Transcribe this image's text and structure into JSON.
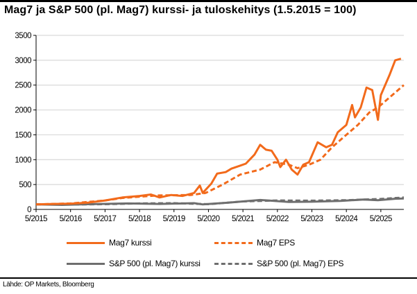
{
  "chart_data": {
    "type": "line",
    "title": "Mag7 ja S&P 500 (pl. Mag7) kurssi- ja tuloskehitys (1.5.2015 = 100)",
    "xlabel": "",
    "ylabel": "",
    "ylim": [
      0,
      3500
    ],
    "xlim": [
      "2015-05",
      "2026-01"
    ],
    "yticks": [
      "0",
      "500",
      "1000",
      "1500",
      "2000",
      "2500",
      "3000",
      "3500"
    ],
    "xticks": [
      "5/2015",
      "5/2016",
      "5/2017",
      "5/2018",
      "5/2019",
      "5/2020",
      "5/2021",
      "5/2022",
      "5/2023",
      "5/2024",
      "5/2025"
    ],
    "grid": "horizontal",
    "legend_placement": "bottom",
    "series": [
      {
        "name": "Mag7 kurssi",
        "color": "#F26A1B",
        "dash": "solid",
        "points": [
          [
            "2015-05",
            100
          ],
          [
            "2015-11",
            110
          ],
          [
            "2016-05",
            115
          ],
          [
            "2016-11",
            135
          ],
          [
            "2017-05",
            180
          ],
          [
            "2017-11",
            240
          ],
          [
            "2018-05",
            270
          ],
          [
            "2018-09",
            300
          ],
          [
            "2018-12",
            240
          ],
          [
            "2019-04",
            290
          ],
          [
            "2019-08",
            270
          ],
          [
            "2019-12",
            330
          ],
          [
            "2020-02",
            480
          ],
          [
            "2020-03",
            330
          ],
          [
            "2020-06",
            520
          ],
          [
            "2020-08",
            720
          ],
          [
            "2020-11",
            750
          ],
          [
            "2021-01",
            820
          ],
          [
            "2021-04",
            880
          ],
          [
            "2021-06",
            920
          ],
          [
            "2021-09",
            1100
          ],
          [
            "2021-11",
            1300
          ],
          [
            "2022-01",
            1200
          ],
          [
            "2022-03",
            1180
          ],
          [
            "2022-05",
            1000
          ],
          [
            "2022-06",
            850
          ],
          [
            "2022-08",
            1000
          ],
          [
            "2022-10",
            800
          ],
          [
            "2022-12",
            700
          ],
          [
            "2023-02",
            900
          ],
          [
            "2023-04",
            950
          ],
          [
            "2023-07",
            1350
          ],
          [
            "2023-10",
            1250
          ],
          [
            "2023-12",
            1300
          ],
          [
            "2024-02",
            1550
          ],
          [
            "2024-05",
            1700
          ],
          [
            "2024-07",
            2100
          ],
          [
            "2024-08",
            1850
          ],
          [
            "2024-10",
            2050
          ],
          [
            "2024-12",
            2450
          ],
          [
            "2025-02",
            2400
          ],
          [
            "2025-04",
            1800
          ],
          [
            "2025-05",
            2300
          ],
          [
            "2025-08",
            2700
          ],
          [
            "2025-10",
            3000
          ],
          [
            "2025-12",
            3030
          ]
        ]
      },
      {
        "name": "Mag7 EPS",
        "color": "#F26A1B",
        "dash": "dashed",
        "points": [
          [
            "2015-05",
            100
          ],
          [
            "2016-05",
            120
          ],
          [
            "2017-05",
            180
          ],
          [
            "2017-11",
            230
          ],
          [
            "2018-11",
            280
          ],
          [
            "2019-11",
            290
          ],
          [
            "2020-04",
            330
          ],
          [
            "2020-10",
            500
          ],
          [
            "2021-04",
            700
          ],
          [
            "2021-11",
            800
          ],
          [
            "2022-04",
            950
          ],
          [
            "2022-09",
            900
          ],
          [
            "2022-12",
            830
          ],
          [
            "2023-04",
            900
          ],
          [
            "2023-08",
            1000
          ],
          [
            "2023-12",
            1250
          ],
          [
            "2024-04",
            1450
          ],
          [
            "2024-09",
            1700
          ],
          [
            "2025-01",
            1950
          ],
          [
            "2025-04",
            2050
          ],
          [
            "2025-09",
            2300
          ],
          [
            "2026-01",
            2500
          ]
        ]
      },
      {
        "name": "S&P 500 (pl. Mag7) kurssi",
        "color": "#6E6E6E",
        "dash": "solid",
        "points": [
          [
            "2015-05",
            100
          ],
          [
            "2016-02",
            90
          ],
          [
            "2016-11",
            105
          ],
          [
            "2018-01",
            120
          ],
          [
            "2018-12",
            110
          ],
          [
            "2019-12",
            125
          ],
          [
            "2020-03",
            100
          ],
          [
            "2020-12",
            135
          ],
          [
            "2021-11",
            190
          ],
          [
            "2022-09",
            150
          ],
          [
            "2023-05",
            155
          ],
          [
            "2024-03",
            170
          ],
          [
            "2024-11",
            200
          ],
          [
            "2025-04",
            185
          ],
          [
            "2025-10",
            215
          ],
          [
            "2026-01",
            220
          ]
        ]
      },
      {
        "name": "S&P 500 (pl. Mag7) EPS",
        "color": "#6E6E6E",
        "dash": "dashed",
        "points": [
          [
            "2015-05",
            100
          ],
          [
            "2016-05",
            98
          ],
          [
            "2017-05",
            105
          ],
          [
            "2018-05",
            120
          ],
          [
            "2019-05",
            125
          ],
          [
            "2020-05",
            105
          ],
          [
            "2021-05",
            160
          ],
          [
            "2022-05",
            180
          ],
          [
            "2023-05",
            175
          ],
          [
            "2024-05",
            185
          ],
          [
            "2025-05",
            210
          ],
          [
            "2026-01",
            240
          ]
        ]
      }
    ]
  },
  "source": "Lähde: OP Markets, Bloomberg"
}
